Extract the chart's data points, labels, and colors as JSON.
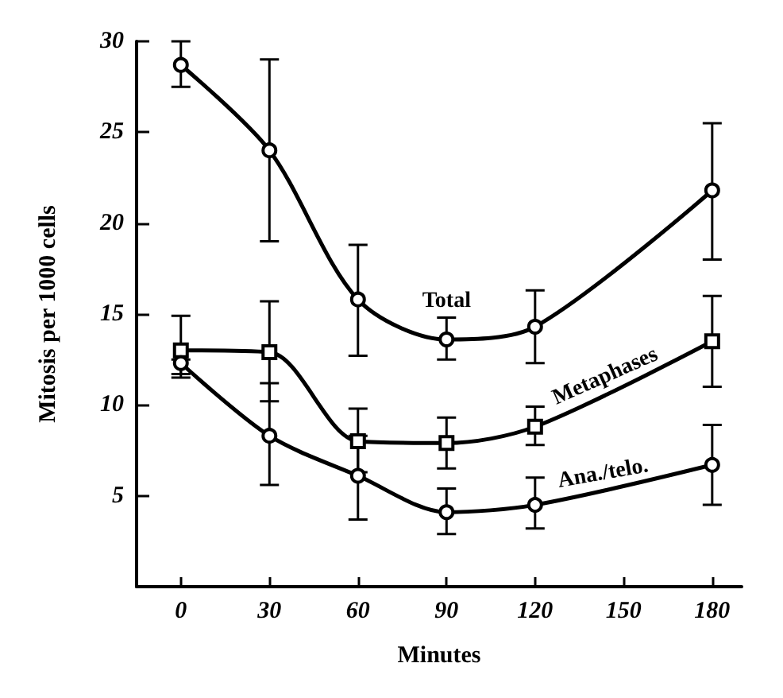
{
  "chart_data": {
    "type": "line",
    "xlabel": "Minutes",
    "ylabel": "Mitosis per 1000 cells",
    "x": [
      0,
      30,
      60,
      90,
      120,
      180
    ],
    "xlim": [
      -15,
      190
    ],
    "xticks": [
      0,
      30,
      60,
      90,
      120,
      150,
      180
    ],
    "ylim": [
      0,
      30
    ],
    "yticks": [
      5,
      10,
      15,
      20,
      25,
      30
    ],
    "grid": false,
    "legend": false,
    "line_style": "solid",
    "series": [
      {
        "name": "Total",
        "color": "#000000",
        "marker": "circle",
        "values": [
          28.7,
          24,
          15.8,
          13.6,
          14.3,
          21.8
        ],
        "errors": [
          [
            27.5,
            30
          ],
          [
            19,
            29
          ],
          [
            12.7,
            18.8
          ],
          [
            12.5,
            14.8
          ],
          [
            12.3,
            16.3
          ],
          [
            18,
            25.5
          ]
        ]
      },
      {
        "name": "Metaphases",
        "color": "#000000",
        "marker": "square",
        "values": [
          13,
          12.9,
          8,
          7.9,
          8.8,
          13.5
        ],
        "errors": [
          [
            11.7,
            14.9
          ],
          [
            10.2,
            15.7
          ],
          [
            6.3,
            9.8
          ],
          [
            6.5,
            9.3
          ],
          [
            7.8,
            9.9
          ],
          [
            11,
            16
          ]
        ]
      },
      {
        "name": "Ana./telo.",
        "color": "#000000",
        "marker": "circle",
        "values": [
          12.3,
          8.3,
          6.1,
          4.1,
          4.5,
          6.7
        ],
        "errors": [
          [
            11.5,
            12.5
          ],
          [
            5.6,
            11.2
          ],
          [
            3.7,
            8.3
          ],
          [
            2.9,
            5.4
          ],
          [
            3.2,
            6
          ],
          [
            4.5,
            8.9
          ]
        ]
      }
    ]
  }
}
